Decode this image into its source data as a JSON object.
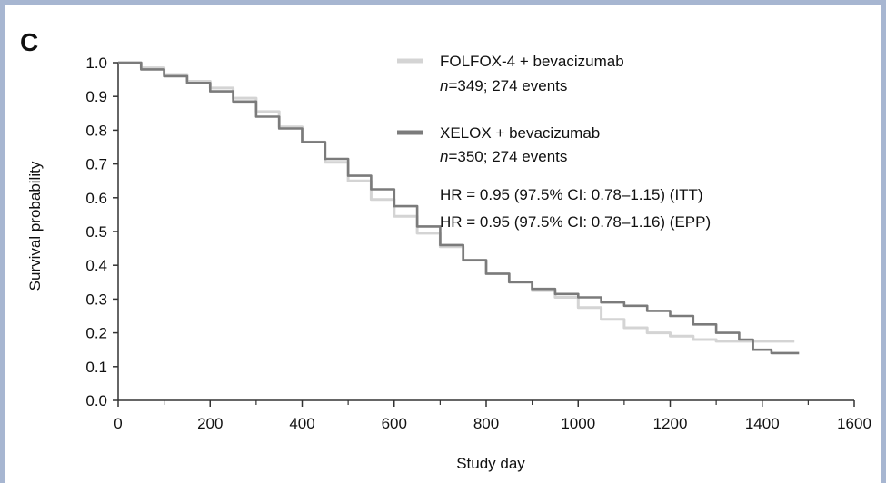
{
  "panel_label": "C",
  "chart_data": {
    "type": "line",
    "xlabel": "Study day",
    "ylabel": "Survival probability",
    "xlim": [
      0,
      1600
    ],
    "ylim": [
      0.0,
      1.0
    ],
    "x_ticks": [
      0,
      200,
      400,
      600,
      800,
      1000,
      1200,
      1400,
      1600
    ],
    "x_tick_labels": [
      "0",
      "200",
      "400",
      "600",
      "800",
      "1000",
      "1200",
      "1400",
      "1600"
    ],
    "y_ticks": [
      0.0,
      0.1,
      0.2,
      0.3,
      0.4,
      0.5,
      0.6,
      0.7,
      0.8,
      0.9,
      1.0
    ],
    "y_tick_labels": [
      "0.0",
      "0.1",
      "0.2",
      "0.3",
      "0.4",
      "0.5",
      "0.6",
      "0.7",
      "0.8",
      "0.9",
      "1.0"
    ],
    "grid": false,
    "legend_position": "top-right",
    "series": [
      {
        "name": "FOLFOX-4 + bevacizumab",
        "subtitle_n": "n",
        "subtitle_rest": "=349; 274 events",
        "color": "#d4d4d4",
        "points": [
          [
            0,
            1.0
          ],
          [
            50,
            0.985
          ],
          [
            100,
            0.965
          ],
          [
            150,
            0.945
          ],
          [
            200,
            0.925
          ],
          [
            250,
            0.895
          ],
          [
            300,
            0.855
          ],
          [
            350,
            0.81
          ],
          [
            400,
            0.765
          ],
          [
            450,
            0.705
          ],
          [
            500,
            0.65
          ],
          [
            550,
            0.595
          ],
          [
            600,
            0.545
          ],
          [
            650,
            0.495
          ],
          [
            700,
            0.455
          ],
          [
            750,
            0.415
          ],
          [
            800,
            0.375
          ],
          [
            850,
            0.35
          ],
          [
            900,
            0.325
          ],
          [
            950,
            0.305
          ],
          [
            1000,
            0.275
          ],
          [
            1050,
            0.24
          ],
          [
            1100,
            0.215
          ],
          [
            1150,
            0.2
          ],
          [
            1200,
            0.19
          ],
          [
            1250,
            0.18
          ],
          [
            1300,
            0.175
          ],
          [
            1350,
            0.175
          ],
          [
            1400,
            0.175
          ],
          [
            1470,
            0.175
          ]
        ]
      },
      {
        "name": "XELOX + bevacizumab",
        "subtitle_n": "n",
        "subtitle_rest": "=350;  274 events",
        "color": "#7b7b7b",
        "points": [
          [
            0,
            1.0
          ],
          [
            50,
            0.98
          ],
          [
            100,
            0.96
          ],
          [
            150,
            0.94
          ],
          [
            200,
            0.915
          ],
          [
            250,
            0.885
          ],
          [
            300,
            0.84
          ],
          [
            350,
            0.805
          ],
          [
            400,
            0.765
          ],
          [
            450,
            0.715
          ],
          [
            500,
            0.665
          ],
          [
            550,
            0.625
          ],
          [
            600,
            0.575
          ],
          [
            650,
            0.515
          ],
          [
            700,
            0.46
          ],
          [
            750,
            0.415
          ],
          [
            800,
            0.375
          ],
          [
            850,
            0.35
          ],
          [
            900,
            0.33
          ],
          [
            950,
            0.315
          ],
          [
            1000,
            0.305
          ],
          [
            1050,
            0.29
          ],
          [
            1100,
            0.28
          ],
          [
            1150,
            0.265
          ],
          [
            1200,
            0.25
          ],
          [
            1250,
            0.225
          ],
          [
            1300,
            0.2
          ],
          [
            1350,
            0.18
          ],
          [
            1380,
            0.15
          ],
          [
            1420,
            0.14
          ],
          [
            1480,
            0.14
          ]
        ]
      }
    ],
    "annotations": [
      "HR = 0.95 (97.5% CI: 0.78–1.15) (ITT)",
      "HR = 0.95 (97.5% CI: 0.78–1.16) (EPP)"
    ]
  }
}
